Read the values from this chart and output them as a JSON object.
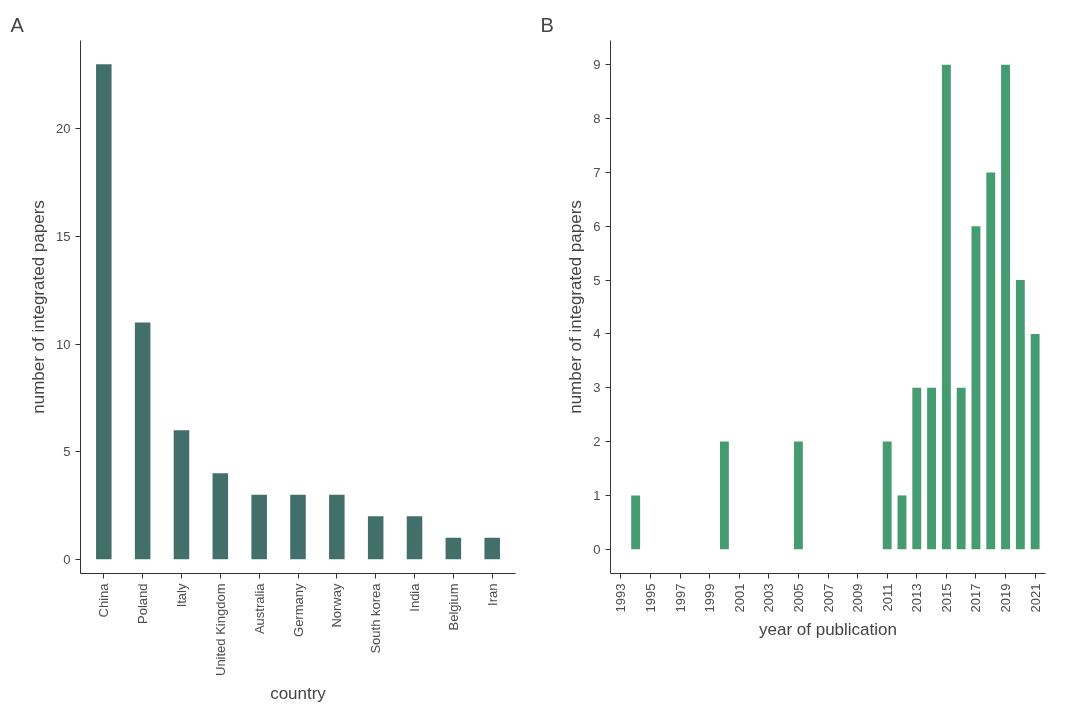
{
  "chart_data": [
    {
      "type": "bar",
      "annotations": [
        "A"
      ],
      "xlabel": "country",
      "ylabel": "number of integrated papers",
      "categories": [
        "China",
        "Poland",
        "Italy",
        "United Kingdom",
        "Australia",
        "Germany",
        "Norway",
        "South korea",
        "India",
        "Belgium",
        "Iran"
      ],
      "series": [
        {
          "color": "#436f6b",
          "values": [
            23,
            11,
            6,
            4,
            3,
            3,
            3,
            2,
            2,
            1,
            1
          ]
        }
      ],
      "ylim": [
        -0.66,
        24.1
      ],
      "yticks": [
        0,
        5,
        10,
        15,
        20
      ],
      "grid": false
    },
    {
      "type": "bar",
      "annotations": [
        "B"
      ],
      "xlabel": "year of publication",
      "ylabel": "number of integrated papers",
      "x": [
        1994,
        2000,
        2005,
        2011,
        2012,
        2013,
        2014,
        2015,
        2016,
        2017,
        2018,
        2019,
        2020,
        2021
      ],
      "series": [
        {
          "color": "#459c70",
          "values": [
            1,
            2,
            2,
            2,
            1,
            3,
            3,
            9,
            3,
            6,
            7,
            9,
            5,
            4
          ]
        }
      ],
      "xlim": [
        1992.3,
        2021.7
      ],
      "xticks": [
        1993,
        1995,
        1997,
        1999,
        2001,
        2003,
        2005,
        2007,
        2009,
        2011,
        2013,
        2015,
        2017,
        2019,
        2021
      ],
      "ylim": [
        -0.45,
        9.45
      ],
      "yticks": [
        0,
        1,
        2,
        3,
        4,
        5,
        6,
        7,
        8,
        9
      ],
      "grid": false
    }
  ]
}
